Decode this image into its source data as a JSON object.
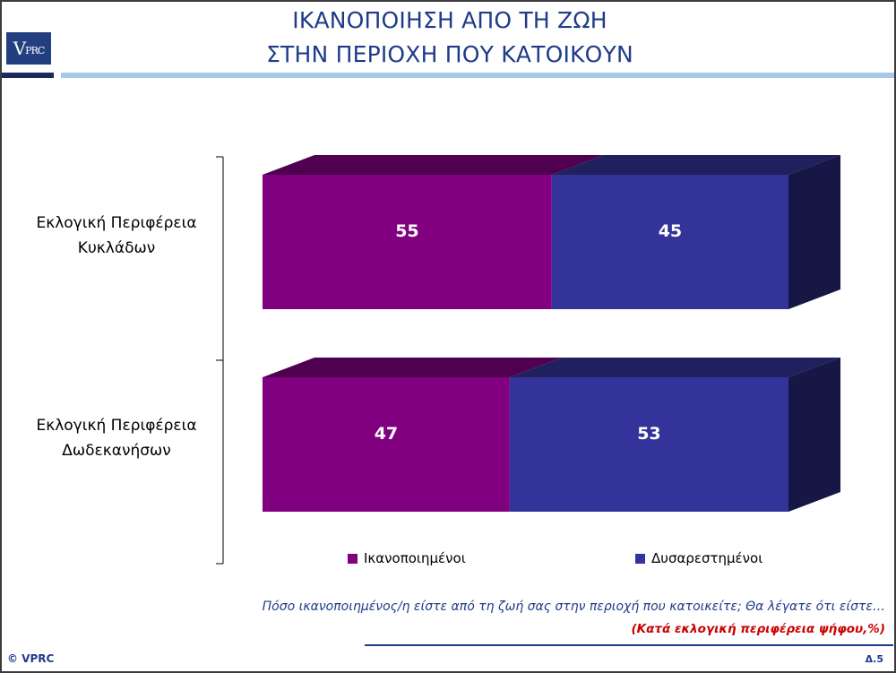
{
  "header": {
    "title_line1": "ΙΚΑΝΟΠΟΙΗΣΗ ΑΠΟ ΤΗ ΖΩΗ",
    "title_line2": "ΣΤΗΝ ΠΕΡΙΟΧΗ ΠΟΥ ΚΑΤΟΙΚΟΥΝ",
    "logo_text": {
      "v": "V",
      "rest": "PRC"
    }
  },
  "colors": {
    "title": "#1f3b89",
    "satisfied": "#800080",
    "dissatisfied": "#333399",
    "accent_light": "#a7c8ea",
    "subtitle_red": "#cc0000"
  },
  "chart_data": {
    "type": "bar",
    "orientation": "horizontal",
    "stacked": true,
    "three_d": true,
    "categories": [
      [
        "Εκλογική Περιφέρεια",
        "Κυκλάδων"
      ],
      [
        "Εκλογική Περιφέρεια",
        "Δωδεκανήσων"
      ]
    ],
    "series": [
      {
        "name": "Ικανοποιημένοι",
        "values": [
          55,
          47
        ],
        "color": "#800080"
      },
      {
        "name": "Δυσαρεστημένοι",
        "values": [
          45,
          53
        ],
        "color": "#333399"
      }
    ],
    "xlim": [
      0,
      100
    ],
    "grid": false,
    "legend_position": "bottom"
  },
  "legend": [
    {
      "label": "Ικανοποιημένοι",
      "color": "#800080"
    },
    {
      "label": "Δυσαρεστημένοι",
      "color": "#333399"
    }
  ],
  "footer": {
    "question": "Πόσο ικανοποιημένος/η είστε από τη ζωή σας στην περιοχή που κατοικείτε; Θα λέγατε ότι είστε…",
    "subtitle": "(Κατά εκλογική περιφέρεια ψήφου,%)",
    "copyright": "© VPRC",
    "page": "Δ.5"
  }
}
